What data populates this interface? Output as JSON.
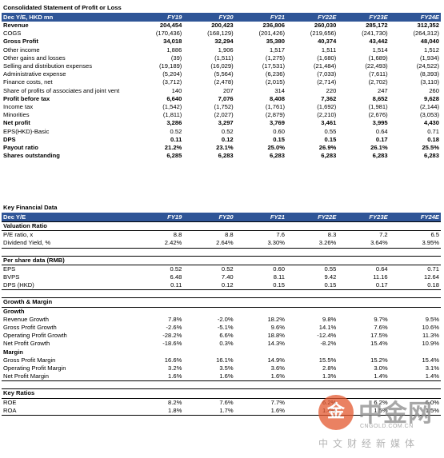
{
  "income": {
    "title": "Consolidated Statement of Profit or Loss",
    "header": [
      "Dec Y/E, HKD mn",
      "FY19",
      "FY20",
      "FY21",
      "FY22E",
      "FY23E",
      "FY24E"
    ],
    "rows": [
      {
        "label": "Revenue",
        "bold": true,
        "values": [
          "204,454",
          "200,423",
          "236,806",
          "260,030",
          "285,172",
          "312,352"
        ]
      },
      {
        "label": "COGS",
        "values": [
          "(170,436)",
          "(168,129)",
          "(201,426)",
          "(219,656)",
          "(241,730)",
          "(264,312)"
        ]
      },
      {
        "label": "Gross Profit",
        "bold": true,
        "values": [
          "34,018",
          "32,294",
          "35,380",
          "40,374",
          "43,442",
          "48,040"
        ]
      },
      {
        "label": "Other income",
        "values": [
          "1,886",
          "1,906",
          "1,517",
          "1,511",
          "1,514",
          "1,512"
        ]
      },
      {
        "label": "Other gains and losses",
        "values": [
          "(39)",
          "(1,511)",
          "(1,275)",
          "(1,680)",
          "(1,689)",
          "(1,934)"
        ]
      },
      {
        "label": "Selling and distribution expenses",
        "values": [
          "(19,189)",
          "(16,029)",
          "(17,531)",
          "(21,484)",
          "(22,493)",
          "(24,522)"
        ]
      },
      {
        "label": "Administrative expense",
        "values": [
          "(5,204)",
          "(5,564)",
          "(6,236)",
          "(7,033)",
          "(7,611)",
          "(8,393)"
        ]
      },
      {
        "label": "Finance costs, net",
        "values": [
          "(3,712)",
          "(2,478)",
          "(2,015)",
          "(2,714)",
          "(2,702)",
          "(3,110)"
        ]
      },
      {
        "label": "Share of profits of associates and joint vent",
        "values": [
          "140",
          "207",
          "314",
          "220",
          "247",
          "260"
        ]
      },
      {
        "label": "Profit before tax",
        "bold": true,
        "values": [
          "6,640",
          "7,076",
          "8,408",
          "7,362",
          "8,652",
          "9,628"
        ]
      },
      {
        "label": "Income tax",
        "values": [
          "(1,542)",
          "(1,752)",
          "(1,761)",
          "(1,692)",
          "(1,981)",
          "(2,144)"
        ]
      },
      {
        "label": "Minorities",
        "values": [
          "(1,811)",
          "(2,027)",
          "(2,879)",
          "(2,210)",
          "(2,676)",
          "(3,053)"
        ]
      },
      {
        "label": "Net profit",
        "bold": true,
        "values": [
          "3,286",
          "3,297",
          "3,769",
          "3,461",
          "3,995",
          "4,430"
        ]
      },
      {
        "label": "EPS(HKD)-Basic",
        "values": [
          "0.52",
          "0.52",
          "0.60",
          "0.55",
          "0.64",
          "0.71"
        ]
      },
      {
        "label": "DPS",
        "bold": true,
        "values": [
          "0.11",
          "0.12",
          "0.15",
          "0.15",
          "0.17",
          "0.18"
        ]
      },
      {
        "label": "Payout ratio",
        "bold": true,
        "values": [
          "21.2%",
          "23.1%",
          "25.0%",
          "26.9%",
          "26.1%",
          "25.5%"
        ]
      },
      {
        "label": "Shares outstanding",
        "bold": true,
        "values": [
          "6,285",
          "6,283",
          "6,283",
          "6,283",
          "6,283",
          "6,283"
        ]
      }
    ]
  },
  "kfd": {
    "title": "Key Financial Data",
    "header": [
      "Dec Y/E",
      "FY19",
      "FY20",
      "FY21",
      "FY22E",
      "FY23E",
      "FY24E"
    ],
    "blocks": [
      {
        "title": "Valuation Ratio",
        "rows": [
          {
            "label": "P/E ratio, x",
            "values": [
              "8.8",
              "8.8",
              "7.6",
              "8.3",
              "7.2",
              "6.5"
            ]
          },
          {
            "label": "Dividend Yield, %",
            "values": [
              "2.42%",
              "2.64%",
              "3.30%",
              "3.26%",
              "3.64%",
              "3.95%"
            ]
          }
        ]
      },
      {
        "title": "Per share data (RMB)",
        "rows": [
          {
            "label": "EPS",
            "values": [
              "0.52",
              "0.52",
              "0.60",
              "0.55",
              "0.64",
              "0.71"
            ]
          },
          {
            "label": "BVPS",
            "values": [
              "6.48",
              "7.40",
              "8.11",
              "9.42",
              "11.16",
              "12.64"
            ]
          },
          {
            "label": "DPS (HKD)",
            "values": [
              "0.11",
              "0.12",
              "0.15",
              "0.15",
              "0.17",
              "0.18"
            ]
          }
        ]
      },
      {
        "title": "Growth & Margin",
        "rows": [
          {
            "label": "Growth",
            "sub": true,
            "values": [
              "",
              "",
              "",
              "",
              "",
              ""
            ]
          },
          {
            "label": "Revenue Growth",
            "values": [
              "7.8%",
              "-2.0%",
              "18.2%",
              "9.8%",
              "9.7%",
              "9.5%"
            ]
          },
          {
            "label": "Gross Profit Growth",
            "values": [
              "-2.6%",
              "-5.1%",
              "9.6%",
              "14.1%",
              "7.6%",
              "10.6%"
            ]
          },
          {
            "label": "Operating Profit Growth",
            "values": [
              "-28.2%",
              "6.6%",
              "18.8%",
              "-12.4%",
              "17.5%",
              "11.3%"
            ]
          },
          {
            "label": "Net Profit Growth",
            "values": [
              "-18.6%",
              "0.3%",
              "14.3%",
              "-8.2%",
              "15.4%",
              "10.9%"
            ]
          },
          {
            "label": "Margin",
            "sub": true,
            "values": [
              "",
              "",
              "",
              "",
              "",
              ""
            ]
          },
          {
            "label": "Gross Profit Margin",
            "values": [
              "16.6%",
              "16.1%",
              "14.9%",
              "15.5%",
              "15.2%",
              "15.4%"
            ]
          },
          {
            "label": "Operating Profit Margin",
            "values": [
              "3.2%",
              "3.5%",
              "3.6%",
              "2.8%",
              "3.0%",
              "3.1%"
            ]
          },
          {
            "label": "Net Profit Margin",
            "values": [
              "1.6%",
              "1.6%",
              "1.6%",
              "1.3%",
              "1.4%",
              "1.4%"
            ]
          }
        ]
      },
      {
        "title": "Key Ratios",
        "rows": [
          {
            "label": "ROE",
            "values": [
              "8.2%",
              "7.6%",
              "7.7%",
              "6.2%",
              "6.2%",
              "6.0%"
            ]
          },
          {
            "label": "ROA",
            "values": [
              "1.8%",
              "1.7%",
              "1.6%",
              "1.4%",
              "1.5%",
              "1.5%"
            ]
          }
        ]
      }
    ]
  },
  "watermark": {
    "logo_char": "金",
    "brand": "中金网",
    "url": "CNGOLD.COM.CN",
    "tagline": "中文财经新媒体",
    "logo_color": "#e4572e"
  }
}
